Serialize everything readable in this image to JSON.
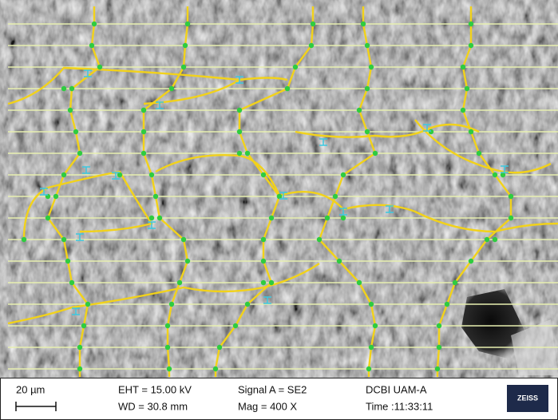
{
  "info_bar": {
    "scale_label": "20 µm",
    "eht": "EHT = 15.00 kV",
    "wd": "WD = 30.8 mm",
    "signal": "Signal A = SE2",
    "mag": "Mag = 400 X",
    "lab": "DCBI UAM-A",
    "time": "Time :11:33:11",
    "logo": "ZEISS"
  }
}
